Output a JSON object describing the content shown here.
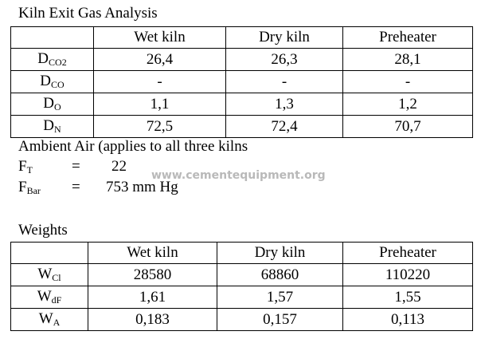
{
  "gas_analysis": {
    "title": "Kiln Exit Gas Analysis",
    "header": [
      "Wet kiln",
      "Dry kiln",
      "Preheater"
    ],
    "rows": [
      {
        "label": {
          "main": "D",
          "sub": "CO2"
        },
        "cells": [
          "26,4",
          "26,3",
          "28,1"
        ]
      },
      {
        "label": {
          "main": "D",
          "sub": "CO"
        },
        "cells": [
          "-",
          "-",
          "-"
        ]
      },
      {
        "label": {
          "main": "D",
          "sub": "O"
        },
        "cells": [
          "1,1",
          "1,3",
          "1,2"
        ]
      },
      {
        "label": {
          "main": "D",
          "sub": "N"
        },
        "cells": [
          "72,5",
          "72,4",
          "70,7"
        ]
      }
    ]
  },
  "ambient": {
    "title": "Ambient Air (applies to all three kilns",
    "items": [
      {
        "label": {
          "main": "F",
          "sub": "T"
        },
        "eq": "=",
        "value": "22"
      },
      {
        "label": {
          "main": "F",
          "sub": "Bar"
        },
        "eq": "=",
        "value": "753 mm Hg"
      }
    ]
  },
  "watermark": "www.cementequipment.org",
  "weights": {
    "title": "Weights",
    "header": [
      "Wet kiln",
      "Dry kiln",
      "Preheater"
    ],
    "rows": [
      {
        "label": {
          "main": "W",
          "sub": "Cl"
        },
        "cells": [
          "28580",
          "68860",
          "110220"
        ]
      },
      {
        "label": {
          "main": "W",
          "sub": "dF"
        },
        "cells": [
          "1,61",
          "1,57",
          "1,55"
        ]
      },
      {
        "label": {
          "main": "W",
          "sub": "A"
        },
        "cells": [
          "0,183",
          "0,157",
          "0,113"
        ]
      }
    ]
  }
}
